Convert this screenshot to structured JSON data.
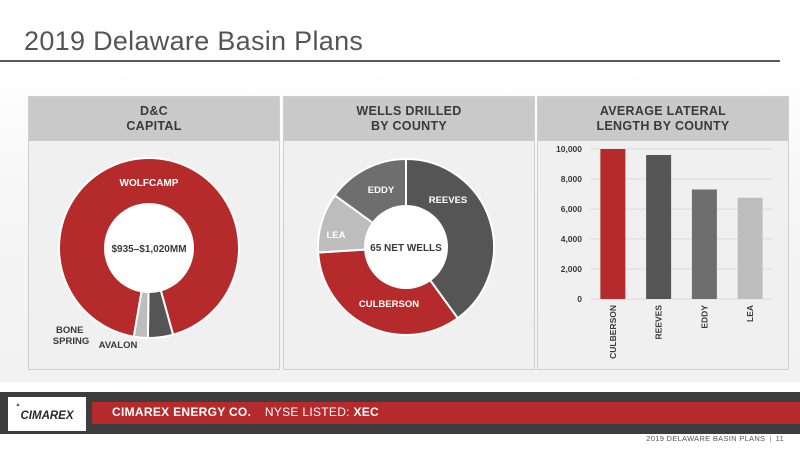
{
  "page": {
    "title": "2019 Delaware Basin Plans"
  },
  "footer": {
    "company": "CIMAREX ENERGY CO.",
    "nyse_label": "NYSE LISTED:",
    "ticker": "XEC",
    "logo_text": "CIMAREX",
    "page_label": "2019 DELAWARE BASIN PLANS",
    "page_number": "11"
  },
  "panels": {
    "capital": {
      "heading_1": "D&C",
      "heading_2": "CAPITAL"
    },
    "wells": {
      "heading_1": "WELLS DRILLED",
      "heading_2": "BY COUNTY"
    },
    "lateral": {
      "heading_1": "AVERAGE LATERAL",
      "heading_2": "LENGTH BY COUNTY"
    }
  },
  "colors": {
    "red": "#b52b2b",
    "dark_gray": "#555555",
    "mid_gray": "#6e6e6e",
    "light_gray": "#bdbdbd"
  },
  "chart_data": [
    {
      "type": "pie",
      "center_label": "$935–$1,020MM",
      "slices": [
        {
          "label": "WOLFCAMP",
          "value": 93,
          "color": "#b52b2b"
        },
        {
          "label": "BONE SPRING",
          "label_line1": "BONE",
          "label_line2": "SPRING",
          "value": 4.5,
          "color": "#555555"
        },
        {
          "label": "AVALON",
          "value": 2.5,
          "color": "#bdbdbd"
        }
      ]
    },
    {
      "type": "pie",
      "center_label": "65 NET WELLS",
      "slices": [
        {
          "label": "REEVES",
          "value": 40,
          "color": "#555555"
        },
        {
          "label": "CULBERSON",
          "value": 34,
          "color": "#b52b2b"
        },
        {
          "label": "LEA",
          "value": 11,
          "color": "#bdbdbd"
        },
        {
          "label": "EDDY",
          "value": 15,
          "color": "#6e6e6e"
        }
      ]
    },
    {
      "type": "bar",
      "categories": [
        "CULBERSON",
        "REEVES",
        "EDDY",
        "LEA"
      ],
      "values": [
        10000,
        9600,
        7300,
        6750
      ],
      "colors": [
        "#b52b2b",
        "#555555",
        "#6e6e6e",
        "#bdbdbd"
      ],
      "yticks": [
        "0",
        "2,000",
        "4,000",
        "6,000",
        "8,000",
        "10,000"
      ],
      "ylim": [
        0,
        10000
      ],
      "grid": true
    }
  ]
}
